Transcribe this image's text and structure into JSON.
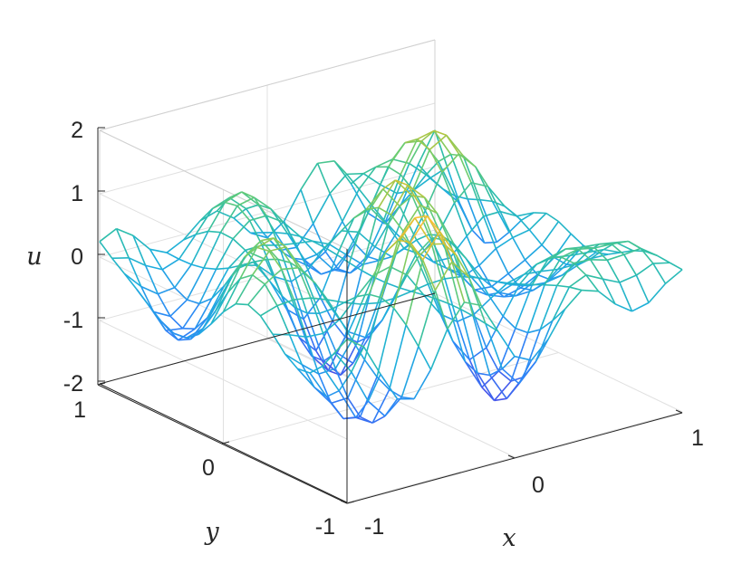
{
  "chart_data": {
    "type": "mesh",
    "surface": "u(x,y)",
    "xlabel": "x",
    "ylabel": "y",
    "zlabel": "u",
    "xlim": [
      -1,
      1
    ],
    "ylim": [
      -1,
      1
    ],
    "zlim": [
      -2,
      2
    ],
    "x_ticks": [
      "-1",
      "0",
      "1"
    ],
    "y_ticks": [
      "-1",
      "0",
      "1"
    ],
    "z_ticks": [
      "-2",
      "-1",
      "0",
      "1",
      "2"
    ],
    "grid": true,
    "colormap": "parula",
    "grid_resolution": 21,
    "colors": {
      "low": "#3e26a8",
      "mid": "#2cb2c6",
      "high": "#f9fb0e",
      "axes": "#262626",
      "grid": "#e0e0e0"
    }
  }
}
